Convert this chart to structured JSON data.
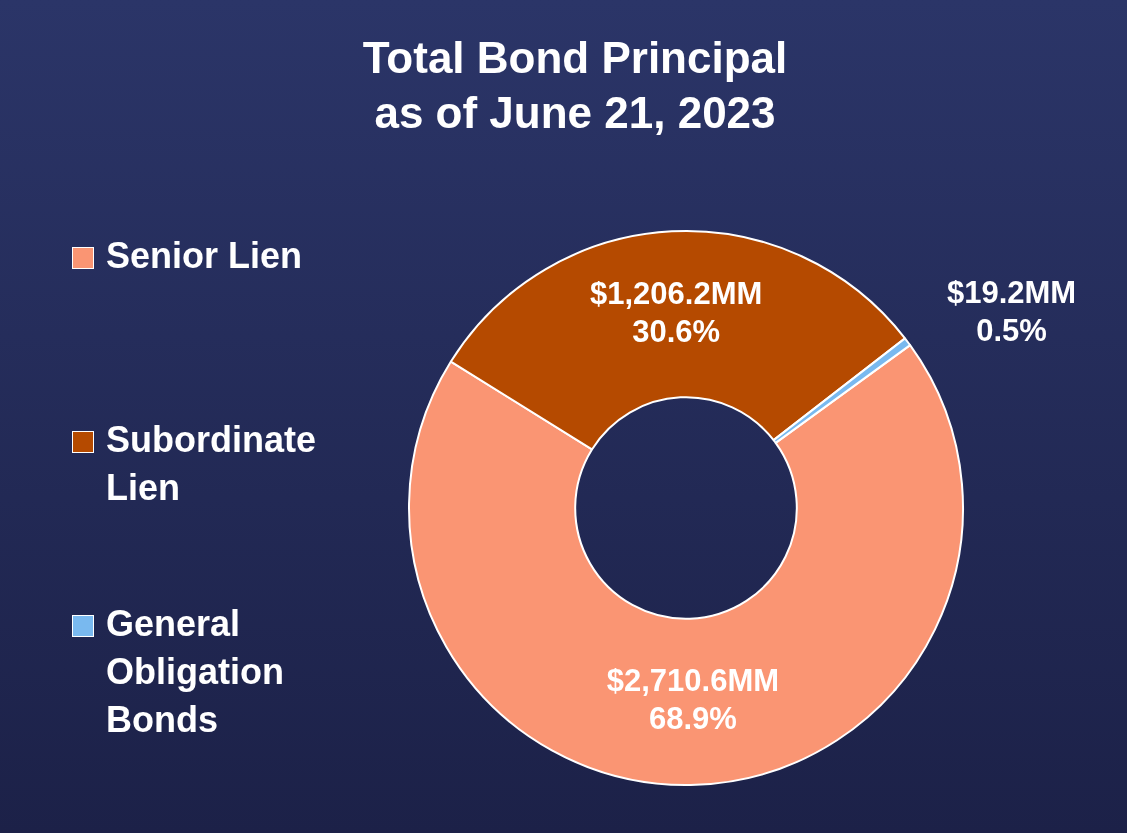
{
  "chart_data": {
    "type": "donut",
    "title": "Total Bond Principal\nas of June 21, 2023",
    "categories": [
      "Senior Lien",
      "Subordinate Lien",
      "General Obligation Bonds"
    ],
    "values": [
      2710.6,
      1206.2,
      19.2
    ],
    "colors": [
      "#fa9573",
      "#b54a00",
      "#79b9ef"
    ],
    "value_labels": [
      "$2,710.6MM\n68.9%",
      "$1,206.2MM\n30.6%",
      "$19.2MM\n0.5%"
    ],
    "legend": "left"
  }
}
